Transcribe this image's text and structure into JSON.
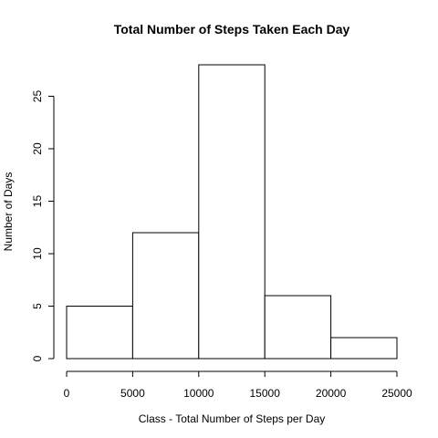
{
  "chart_data": {
    "type": "bar",
    "histogram": true,
    "title": "Total Number of Steps Taken Each Day",
    "xlabel": "Class - Total Number of Steps per Day",
    "ylabel": "Number of Days",
    "bins": [
      {
        "from": 0,
        "to": 5000,
        "count": 5
      },
      {
        "from": 5000,
        "to": 10000,
        "count": 12
      },
      {
        "from": 10000,
        "to": 15000,
        "count": 28
      },
      {
        "from": 15000,
        "to": 20000,
        "count": 6
      },
      {
        "from": 20000,
        "to": 25000,
        "count": 2
      }
    ],
    "xlim": [
      0,
      25000
    ],
    "ylim": [
      0,
      28
    ],
    "xticks": [
      0,
      5000,
      10000,
      15000,
      20000,
      25000
    ],
    "xtick_labels": [
      "0",
      "5000",
      "10000",
      "15000",
      "20000",
      "25000"
    ],
    "yticks": [
      0,
      5,
      10,
      15,
      20,
      25
    ],
    "ytick_labels": [
      "0",
      "5",
      "10",
      "15",
      "20",
      "25"
    ],
    "grid": false,
    "legend": "none",
    "bar_fill": "#ffffff",
    "bar_stroke": "#000000"
  }
}
